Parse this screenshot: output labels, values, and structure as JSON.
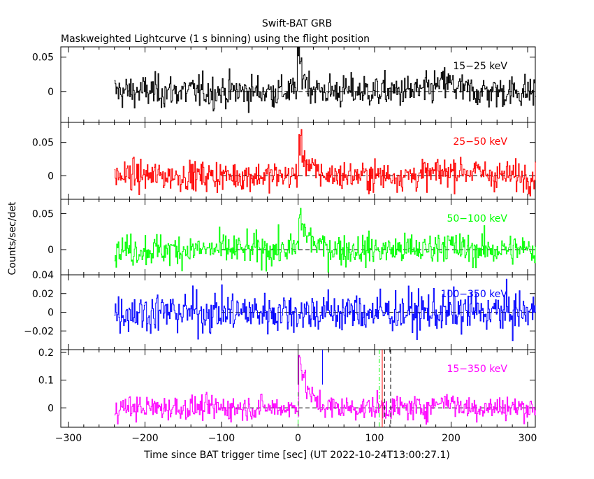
{
  "title": "Swift-BAT GRB",
  "subtitle": "Maskweighted Lightcurve (1 s binning) using the flight position",
  "xlabel": "Time since BAT trigger time [sec] (UT 2022-10-24T13:00:27.1)",
  "ylabel": "Counts/sec/det",
  "chart_data": {
    "type": "line",
    "xlim": [
      -310,
      310
    ],
    "x_ticks": [
      -300,
      -200,
      -100,
      0,
      100,
      200,
      300
    ],
    "x_tick_labels": [
      "−300",
      "−200",
      "−100",
      "0",
      "100",
      "200",
      "300"
    ],
    "series_x_range": [
      -240,
      310
    ],
    "panels": [
      {
        "name": "15−25 keV",
        "color": "#000000",
        "ylim": [
          -0.045,
          0.065
        ],
        "y_ticks": [
          0,
          0.05
        ],
        "y_tick_labels": [
          "0",
          "0.05"
        ],
        "noise_sigma": 0.012,
        "features": [
          {
            "type": "spike",
            "x": 0,
            "height": 0.055,
            "width": 4
          },
          {
            "type": "bump",
            "x": 192,
            "height": 0.012,
            "width": 12
          }
        ],
        "zero_line": "dashed"
      },
      {
        "name": "25−50 keV",
        "color": "#ff0000",
        "ylim": [
          -0.035,
          0.08
        ],
        "y_ticks": [
          0,
          0.05
        ],
        "y_tick_labels": [
          "0",
          "0.05"
        ],
        "noise_sigma": 0.011,
        "features": [
          {
            "type": "spike",
            "x": 2,
            "height": 0.05,
            "width": 5
          },
          {
            "type": "bump",
            "x": 210,
            "height": 0.008,
            "width": 25
          }
        ],
        "zero_line": "dashed"
      },
      {
        "name": "50−100 keV",
        "color": "#00ff00",
        "ylim": [
          -0.035,
          0.07
        ],
        "y_ticks": [
          0,
          0.05
        ],
        "y_tick_labels": [
          "0",
          "0.05"
        ],
        "noise_sigma": 0.011,
        "features": [
          {
            "type": "spike",
            "x": 2,
            "height": 0.045,
            "width": 6
          },
          {
            "type": "bump",
            "x": 190,
            "height": 0.008,
            "width": 10
          }
        ],
        "zero_line": "dashed"
      },
      {
        "name": "100−350 keV",
        "color": "#0000ff",
        "ylim": [
          -0.04,
          0.04
        ],
        "y_ticks": [
          -0.02,
          0,
          0.02,
          0.04
        ],
        "y_tick_labels": [
          "−0.02",
          "0",
          "0.02",
          "0.04"
        ],
        "noise_sigma": 0.011,
        "features": [],
        "zero_line": "dashed"
      },
      {
        "name": "15−350 keV",
        "color": "#ff00ff",
        "ylim": [
          -0.07,
          0.21
        ],
        "y_ticks": [
          0,
          0.1,
          0.2
        ],
        "y_tick_labels": [
          "0",
          "0.1",
          "0.2"
        ],
        "noise_sigma": 0.022,
        "features": [
          {
            "type": "spike",
            "x": 2,
            "height": 0.18,
            "width": 5
          },
          {
            "type": "bump",
            "x": 192,
            "height": 0.03,
            "width": 10
          }
        ],
        "zero_line": "dashed",
        "markers": [
          {
            "x": 0,
            "color": "#000000",
            "style": "solid",
            "extent": "top"
          },
          {
            "x": 0,
            "color": "#00ff00",
            "style": "dashdot",
            "extent": "bottom"
          },
          {
            "x": 32,
            "color": "#0000ff",
            "style": "solid",
            "extent": "top"
          },
          {
            "x": 106,
            "color": "#00ff00",
            "style": "dashdot",
            "extent": "full"
          },
          {
            "x": 110,
            "color": "#ff0000",
            "style": "solid",
            "extent": "full"
          },
          {
            "x": 113,
            "color": "#000000",
            "style": "dashed",
            "extent": "full"
          },
          {
            "x": 121,
            "color": "#000000",
            "style": "dashed",
            "extent": "full"
          }
        ]
      }
    ]
  }
}
